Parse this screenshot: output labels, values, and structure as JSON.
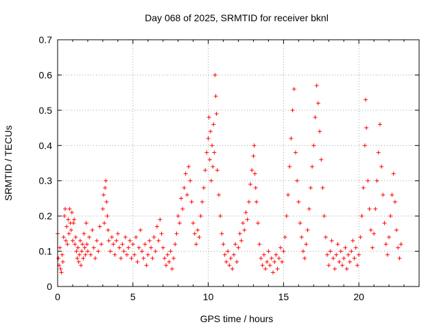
{
  "chart_data": {
    "type": "scatter",
    "title": "Day 068 of 2025, SRMTID for receiver bknl",
    "xlabel": "GPS time / hours",
    "ylabel": "SRMTID / TECUs",
    "xlim": [
      0,
      24
    ],
    "ylim": [
      0,
      0.7
    ],
    "xticks": [
      0,
      5,
      10,
      15,
      20
    ],
    "xtick_labels": [
      "0",
      "5",
      "10",
      "15",
      "20"
    ],
    "yticks": [
      0,
      0.1,
      0.2,
      0.3,
      0.4,
      0.5,
      0.6,
      0.7
    ],
    "ytick_labels": [
      "0",
      "0.1",
      "0.2",
      "0.3",
      "0.4",
      "0.5",
      "0.6",
      "0.7"
    ],
    "grid": true,
    "marker": "plus",
    "color": "#ff0000",
    "series": [
      {
        "name": "SRMTID",
        "points": [
          [
            0.0,
            0.15
          ],
          [
            0.05,
            0.08
          ],
          [
            0.1,
            0.06
          ],
          [
            0.15,
            0.11
          ],
          [
            0.2,
            0.05
          ],
          [
            0.25,
            0.04
          ],
          [
            0.3,
            0.09
          ],
          [
            0.35,
            0.07
          ],
          [
            0.4,
            0.14
          ],
          [
            0.45,
            0.2
          ],
          [
            0.5,
            0.22
          ],
          [
            0.55,
            0.13
          ],
          [
            0.6,
            0.17
          ],
          [
            0.65,
            0.12
          ],
          [
            0.7,
            0.19
          ],
          [
            0.75,
            0.15
          ],
          [
            0.8,
            0.22
          ],
          [
            0.85,
            0.18
          ],
          [
            0.9,
            0.16
          ],
          [
            0.95,
            0.21
          ],
          [
            1.0,
            0.13
          ],
          [
            1.05,
            0.18
          ],
          [
            1.1,
            0.19
          ],
          [
            1.15,
            0.12
          ],
          [
            1.2,
            0.14
          ],
          [
            1.25,
            0.1
          ],
          [
            1.3,
            0.08
          ],
          [
            1.35,
            0.11
          ],
          [
            1.4,
            0.07
          ],
          [
            1.45,
            0.09
          ],
          [
            1.5,
            0.13
          ],
          [
            1.55,
            0.06
          ],
          [
            1.6,
            0.1
          ],
          [
            1.65,
            0.12
          ],
          [
            1.7,
            0.08
          ],
          [
            1.75,
            0.15
          ],
          [
            1.8,
            0.11
          ],
          [
            1.85,
            0.09
          ],
          [
            1.9,
            0.18
          ],
          [
            1.95,
            0.12
          ],
          [
            2.0,
            0.1
          ],
          [
            2.1,
            0.14
          ],
          [
            2.2,
            0.09
          ],
          [
            2.3,
            0.16
          ],
          [
            2.4,
            0.11
          ],
          [
            2.5,
            0.08
          ],
          [
            2.6,
            0.13
          ],
          [
            2.7,
            0.1
          ],
          [
            2.8,
            0.17
          ],
          [
            2.9,
            0.12
          ],
          [
            3.0,
            0.22
          ],
          [
            3.05,
            0.26
          ],
          [
            3.1,
            0.18
          ],
          [
            3.15,
            0.28
          ],
          [
            3.2,
            0.3
          ],
          [
            3.25,
            0.24
          ],
          [
            3.3,
            0.2
          ],
          [
            3.35,
            0.16
          ],
          [
            3.4,
            0.13
          ],
          [
            3.5,
            0.1
          ],
          [
            3.6,
            0.14
          ],
          [
            3.7,
            0.12
          ],
          [
            3.8,
            0.09
          ],
          [
            3.9,
            0.13
          ],
          [
            4.0,
            0.15
          ],
          [
            4.1,
            0.11
          ],
          [
            4.2,
            0.08
          ],
          [
            4.3,
            0.12
          ],
          [
            4.4,
            0.1
          ],
          [
            4.5,
            0.14
          ],
          [
            4.6,
            0.09
          ],
          [
            4.7,
            0.11
          ],
          [
            4.8,
            0.13
          ],
          [
            4.9,
            0.08
          ],
          [
            5.0,
            0.12
          ],
          [
            5.1,
            0.09
          ],
          [
            5.2,
            0.14
          ],
          [
            5.3,
            0.07
          ],
          [
            5.4,
            0.11
          ],
          [
            5.5,
            0.16
          ],
          [
            5.6,
            0.1
          ],
          [
            5.7,
            0.08
          ],
          [
            5.8,
            0.12
          ],
          [
            5.9,
            0.06
          ],
          [
            6.0,
            0.09
          ],
          [
            6.1,
            0.13
          ],
          [
            6.2,
            0.11
          ],
          [
            6.3,
            0.08
          ],
          [
            6.4,
            0.14
          ],
          [
            6.5,
            0.1
          ],
          [
            6.6,
            0.17
          ],
          [
            6.7,
            0.13
          ],
          [
            6.8,
            0.19
          ],
          [
            6.9,
            0.15
          ],
          [
            7.0,
            0.11
          ],
          [
            7.1,
            0.08
          ],
          [
            7.2,
            0.06
          ],
          [
            7.3,
            0.09
          ],
          [
            7.4,
            0.07
          ],
          [
            7.5,
            0.1
          ],
          [
            7.6,
            0.05
          ],
          [
            7.7,
            0.08
          ],
          [
            7.8,
            0.12
          ],
          [
            7.9,
            0.15
          ],
          [
            8.0,
            0.2
          ],
          [
            8.1,
            0.18
          ],
          [
            8.2,
            0.25
          ],
          [
            8.3,
            0.22
          ],
          [
            8.4,
            0.28
          ],
          [
            8.5,
            0.32
          ],
          [
            8.6,
            0.26
          ],
          [
            8.7,
            0.34
          ],
          [
            8.8,
            0.3
          ],
          [
            8.9,
            0.24
          ],
          [
            9.0,
            0.18
          ],
          [
            9.1,
            0.15
          ],
          [
            9.2,
            0.12
          ],
          [
            9.3,
            0.16
          ],
          [
            9.4,
            0.14
          ],
          [
            9.5,
            0.2
          ],
          [
            9.6,
            0.24
          ],
          [
            9.7,
            0.28
          ],
          [
            9.8,
            0.33
          ],
          [
            9.9,
            0.38
          ],
          [
            10.0,
            0.42
          ],
          [
            10.05,
            0.48
          ],
          [
            10.1,
            0.36
          ],
          [
            10.15,
            0.44
          ],
          [
            10.2,
            0.3
          ],
          [
            10.25,
            0.4
          ],
          [
            10.3,
            0.34
          ],
          [
            10.35,
            0.46
          ],
          [
            10.4,
            0.38
          ],
          [
            10.45,
            0.6
          ],
          [
            10.5,
            0.54
          ],
          [
            10.55,
            0.49
          ],
          [
            10.6,
            0.33
          ],
          [
            10.7,
            0.26
          ],
          [
            10.8,
            0.2
          ],
          [
            10.9,
            0.15
          ],
          [
            11.0,
            0.12
          ],
          [
            11.1,
            0.09
          ],
          [
            11.2,
            0.07
          ],
          [
            11.3,
            0.1
          ],
          [
            11.4,
            0.06
          ],
          [
            11.5,
            0.08
          ],
          [
            11.6,
            0.05
          ],
          [
            11.7,
            0.09
          ],
          [
            11.8,
            0.12
          ],
          [
            11.9,
            0.07
          ],
          [
            12.0,
            0.11
          ],
          [
            12.1,
            0.15
          ],
          [
            12.2,
            0.13
          ],
          [
            12.3,
            0.18
          ],
          [
            12.4,
            0.16
          ],
          [
            12.5,
            0.21
          ],
          [
            12.6,
            0.19
          ],
          [
            12.7,
            0.24
          ],
          [
            12.8,
            0.29
          ],
          [
            12.9,
            0.33
          ],
          [
            13.0,
            0.37
          ],
          [
            13.05,
            0.4
          ],
          [
            13.1,
            0.32
          ],
          [
            13.15,
            0.28
          ],
          [
            13.2,
            0.24
          ],
          [
            13.3,
            0.18
          ],
          [
            13.4,
            0.12
          ],
          [
            13.5,
            0.08
          ],
          [
            13.6,
            0.06
          ],
          [
            13.7,
            0.09
          ],
          [
            13.8,
            0.05
          ],
          [
            13.9,
            0.07
          ],
          [
            14.0,
            0.1
          ],
          [
            14.1,
            0.06
          ],
          [
            14.2,
            0.08
          ],
          [
            14.3,
            0.04
          ],
          [
            14.4,
            0.07
          ],
          [
            14.5,
            0.09
          ],
          [
            14.6,
            0.05
          ],
          [
            14.7,
            0.08
          ],
          [
            14.8,
            0.11
          ],
          [
            14.9,
            0.07
          ],
          [
            15.0,
            0.1
          ],
          [
            15.1,
            0.14
          ],
          [
            15.2,
            0.2
          ],
          [
            15.3,
            0.26
          ],
          [
            15.4,
            0.34
          ],
          [
            15.5,
            0.42
          ],
          [
            15.6,
            0.5
          ],
          [
            15.7,
            0.56
          ],
          [
            15.8,
            0.38
          ],
          [
            15.9,
            0.3
          ],
          [
            16.0,
            0.24
          ],
          [
            16.1,
            0.18
          ],
          [
            16.2,
            0.14
          ],
          [
            16.3,
            0.1
          ],
          [
            16.4,
            0.08
          ],
          [
            16.5,
            0.12
          ],
          [
            16.6,
            0.16
          ],
          [
            16.7,
            0.22
          ],
          [
            16.8,
            0.28
          ],
          [
            16.9,
            0.34
          ],
          [
            17.0,
            0.4
          ],
          [
            17.1,
            0.48
          ],
          [
            17.2,
            0.57
          ],
          [
            17.3,
            0.52
          ],
          [
            17.4,
            0.44
          ],
          [
            17.5,
            0.36
          ],
          [
            17.6,
            0.28
          ],
          [
            17.7,
            0.2
          ],
          [
            17.8,
            0.14
          ],
          [
            17.9,
            0.09
          ],
          [
            18.0,
            0.06
          ],
          [
            18.1,
            0.1
          ],
          [
            18.2,
            0.13
          ],
          [
            18.3,
            0.08
          ],
          [
            18.4,
            0.05
          ],
          [
            18.5,
            0.09
          ],
          [
            18.6,
            0.12
          ],
          [
            18.7,
            0.07
          ],
          [
            18.8,
            0.1
          ],
          [
            18.9,
            0.06
          ],
          [
            19.0,
            0.08
          ],
          [
            19.1,
            0.11
          ],
          [
            19.2,
            0.05
          ],
          [
            19.3,
            0.09
          ],
          [
            19.4,
            0.07
          ],
          [
            19.5,
            0.1
          ],
          [
            19.6,
            0.13
          ],
          [
            19.7,
            0.08
          ],
          [
            19.8,
            0.11
          ],
          [
            19.9,
            0.06
          ],
          [
            20.0,
            0.09
          ],
          [
            20.1,
            0.14
          ],
          [
            20.2,
            0.2
          ],
          [
            20.3,
            0.28
          ],
          [
            20.4,
            0.4
          ],
          [
            20.45,
            0.53
          ],
          [
            20.5,
            0.45
          ],
          [
            20.6,
            0.3
          ],
          [
            20.7,
            0.22
          ],
          [
            20.8,
            0.16
          ],
          [
            20.9,
            0.11
          ],
          [
            21.0,
            0.15
          ],
          [
            21.1,
            0.22
          ],
          [
            21.2,
            0.3
          ],
          [
            21.3,
            0.38
          ],
          [
            21.4,
            0.46
          ],
          [
            21.5,
            0.34
          ],
          [
            21.6,
            0.26
          ],
          [
            21.7,
            0.18
          ],
          [
            21.8,
            0.12
          ],
          [
            21.9,
            0.09
          ],
          [
            22.0,
            0.14
          ],
          [
            22.1,
            0.2
          ],
          [
            22.2,
            0.26
          ],
          [
            22.3,
            0.32
          ],
          [
            22.4,
            0.24
          ],
          [
            22.5,
            0.16
          ],
          [
            22.6,
            0.11
          ],
          [
            22.7,
            0.08
          ],
          [
            22.8,
            0.12
          ]
        ]
      }
    ]
  }
}
